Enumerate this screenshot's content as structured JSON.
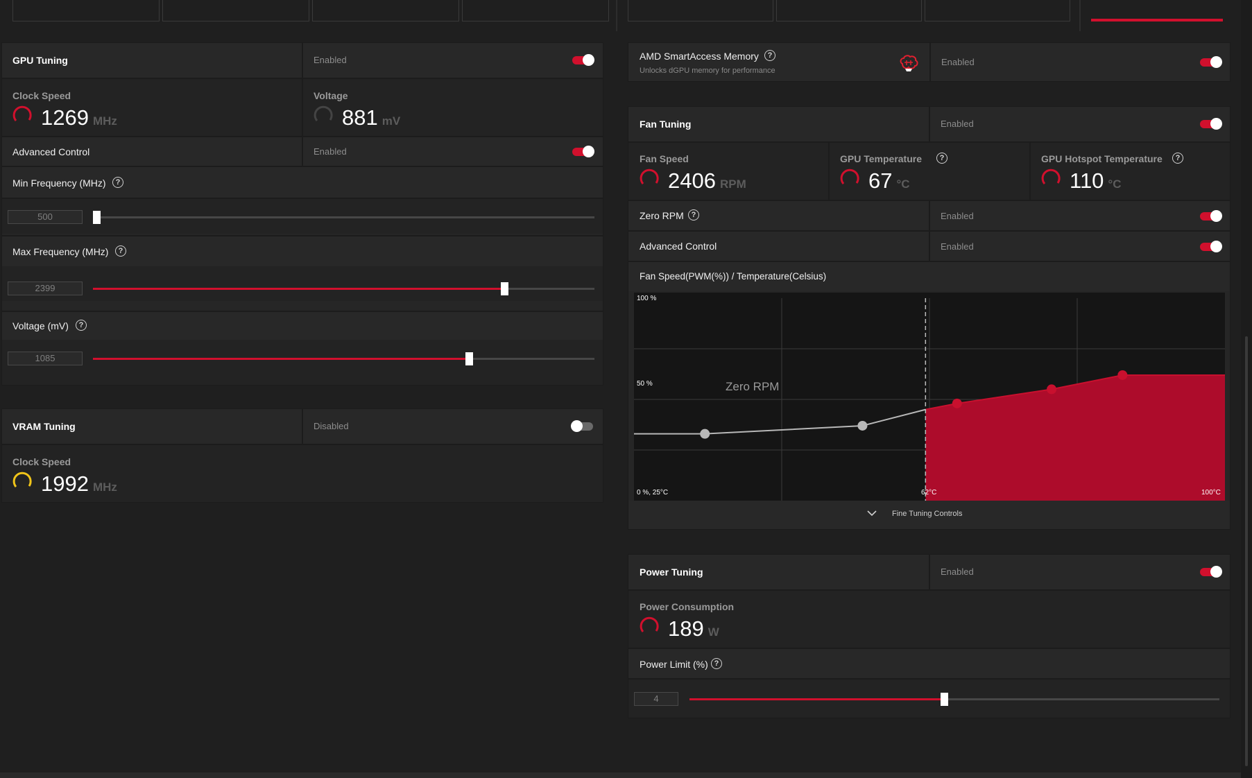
{
  "gpu_tuning": {
    "title": "GPU Tuning",
    "status": "Enabled",
    "enabled": true,
    "clock_speed": {
      "label": "Clock Speed",
      "value": "1269",
      "unit": "MHz"
    },
    "voltage": {
      "label": "Voltage",
      "value": "881",
      "unit": "mV"
    },
    "advanced_control": {
      "label": "Advanced Control",
      "status": "Enabled",
      "enabled": true
    },
    "min_frequency": {
      "label": "Min Frequency (MHz)",
      "value": "500",
      "slider_fraction": 0.0
    },
    "max_frequency": {
      "label": "Max Frequency (MHz)",
      "value": "2399",
      "slider_fraction": 0.82
    },
    "voltage_mv": {
      "label": "Voltage (mV)",
      "value": "1085",
      "slider_fraction": 0.75
    }
  },
  "vram_tuning": {
    "title": "VRAM Tuning",
    "status": "Disabled",
    "enabled": false,
    "clock_speed": {
      "label": "Clock Speed",
      "value": "1992",
      "unit": "MHz"
    }
  },
  "smart_access": {
    "title": "AMD SmartAccess Memory",
    "subtitle": "Unlocks dGPU memory for performance",
    "status": "Enabled",
    "enabled": true,
    "icon": "brain-chip-icon"
  },
  "fan_tuning": {
    "title": "Fan Tuning",
    "status": "Enabled",
    "enabled": true,
    "fan_speed": {
      "label": "Fan Speed",
      "value": "2406",
      "unit": "RPM"
    },
    "gpu_temp": {
      "label": "GPU Temperature",
      "value": "67",
      "unit": "°C"
    },
    "hotspot_temp": {
      "label": "GPU Hotspot Temperature",
      "value": "110",
      "unit": "°C"
    },
    "zero_rpm": {
      "label": "Zero RPM",
      "status": "Enabled",
      "enabled": true
    },
    "advanced_control": {
      "label": "Advanced Control",
      "status": "Enabled",
      "enabled": true
    },
    "curve_title": "Fan Speed(PWM(%)) / Temperature(Celsius)",
    "fine_tuning": "Fine Tuning Controls"
  },
  "power_tuning": {
    "title": "Power Tuning",
    "status": "Enabled",
    "enabled": true,
    "consumption": {
      "label": "Power Consumption",
      "value": "189",
      "unit": "W"
    },
    "power_limit": {
      "label": "Power Limit (%)",
      "value": "4",
      "slider_fraction": 0.48
    }
  },
  "chart_data": {
    "type": "line",
    "title": "Fan Speed(PWM(%)) / Temperature(Celsius)",
    "xlabel": "Temperature(Celsius)",
    "ylabel": "Fan Speed(PWM(%))",
    "xlim": [
      25,
      100
    ],
    "ylim": [
      0,
      100
    ],
    "tick_labels": {
      "y_top": "100 %",
      "y_mid": "50 %",
      "origin": "0 %, 25°C",
      "x_mid": "62°C",
      "x_end": "100°C"
    },
    "annotation": "Zero RPM",
    "zero_rpm_boundary_temp": 62,
    "series": [
      {
        "values_x": [
          25,
          34,
          54,
          62,
          66,
          78,
          87,
          100
        ],
        "values_y": [
          33,
          33,
          37,
          45,
          48,
          55,
          62,
          62
        ]
      }
    ],
    "points": [
      {
        "x": 34,
        "y": 33,
        "active": false
      },
      {
        "x": 54,
        "y": 37,
        "active": false
      },
      {
        "x": 66,
        "y": 48,
        "active": true
      },
      {
        "x": 78,
        "y": 55,
        "active": true
      },
      {
        "x": 87,
        "y": 62,
        "active": true
      }
    ],
    "grid": true,
    "colors": {
      "accent": "#c8102e",
      "fill": "#ad0c2b",
      "inactive": "#b8b8b8"
    }
  },
  "colors": {
    "accent": "#d1102d",
    "vram_gauge": "#f0c419",
    "background": "#1f1f1f"
  }
}
